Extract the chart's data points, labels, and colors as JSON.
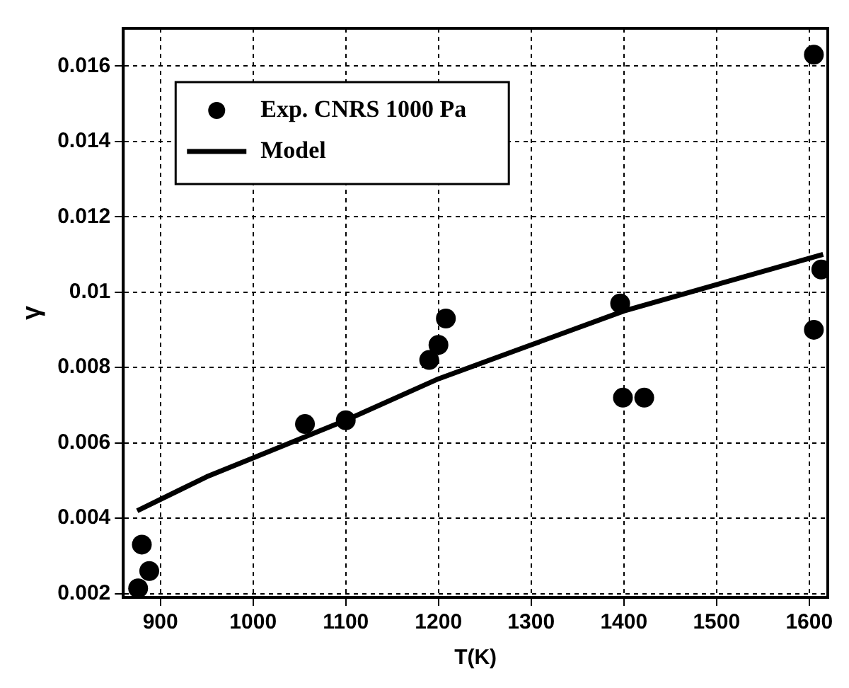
{
  "chart_data": {
    "type": "scatter",
    "xlabel": "T(K)",
    "ylabel": "γ",
    "xlim": [
      860,
      1620
    ],
    "ylim": [
      0.0019,
      0.017
    ],
    "xticks": [
      900,
      1000,
      1100,
      1200,
      1300,
      1400,
      1500,
      1600
    ],
    "yticks": [
      0.002,
      0.004,
      0.006,
      0.008,
      0.01,
      0.012,
      0.014,
      0.016
    ],
    "grid": true,
    "legend": "top left",
    "series": [
      {
        "name": "Exp. CNRS 1000 Pa",
        "color": "#000000",
        "marker": "circle",
        "x": [
          876,
          880,
          888,
          1056,
          1100,
          1190,
          1200,
          1208,
          1396,
          1399,
          1422,
          1605,
          1605,
          1613
        ],
        "values": [
          0.00214,
          0.0033,
          0.0026,
          0.0065,
          0.0066,
          0.0082,
          0.0086,
          0.0093,
          0.0097,
          0.0072,
          0.0072,
          0.0163,
          0.009,
          0.0106
        ]
      },
      {
        "name": "Model",
        "type": "line",
        "color": "#000000",
        "marker": "none",
        "line_style": "solid",
        "x": [
          875,
          950,
          1000,
          1100,
          1200,
          1300,
          1400,
          1500,
          1615
        ],
        "values": [
          0.0042,
          0.0051,
          0.0056,
          0.0066,
          0.0077,
          0.0086,
          0.0095,
          0.0102,
          0.011
        ]
      }
    ]
  }
}
